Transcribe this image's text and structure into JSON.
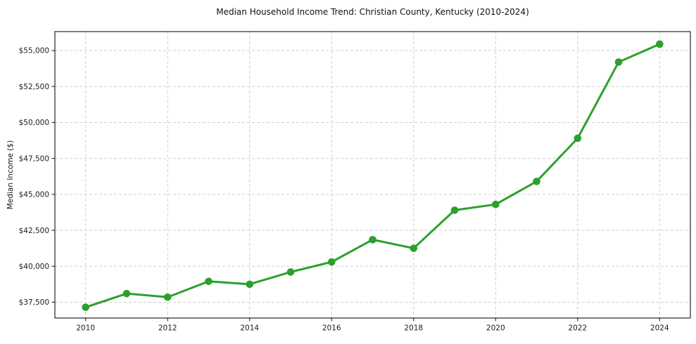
{
  "header": {
    "title": "Median Household Income Trend: Christian County, Kentucky (2010-2024)"
  },
  "chart_data": {
    "type": "line",
    "title": "Median Household Income Trend: Christian County, Kentucky (2010-2024)",
    "xlabel": "",
    "ylabel": "Median Income ($)",
    "x": [
      2010,
      2011,
      2012,
      2013,
      2014,
      2015,
      2016,
      2017,
      2018,
      2019,
      2020,
      2021,
      2022,
      2023,
      2024
    ],
    "series": [
      {
        "name": "Median household income",
        "values": [
          37150,
          38100,
          37850,
          38950,
          38750,
          39600,
          40300,
          41850,
          41250,
          43900,
          44300,
          45900,
          48900,
          54200,
          55450
        ]
      }
    ],
    "xticks": {
      "values": [
        2010,
        2012,
        2014,
        2016,
        2018,
        2020,
        2022,
        2024
      ],
      "labels": [
        "2010",
        "2012",
        "2014",
        "2016",
        "2018",
        "2020",
        "2022",
        "2024"
      ]
    },
    "yticks": {
      "values": [
        37500,
        40000,
        42500,
        45000,
        47500,
        50000,
        52500,
        55000
      ],
      "labels": [
        "$37,500",
        "$40,000",
        "$42,500",
        "$45,000",
        "$47,500",
        "$50,000",
        "$52,500",
        "$55,000"
      ]
    },
    "xlim": [
      2009.25,
      2024.75
    ],
    "ylim": [
      36400,
      56320
    ],
    "grid": true,
    "grid_style": "dashed",
    "legend": "none",
    "line_color": "#2ca02c",
    "marker_color": "#2ca02c",
    "grid_color": "#cfcfcf",
    "axis_color": "#262626",
    "tick_label_color": "#1a1a1a",
    "background": "#ffffff"
  }
}
